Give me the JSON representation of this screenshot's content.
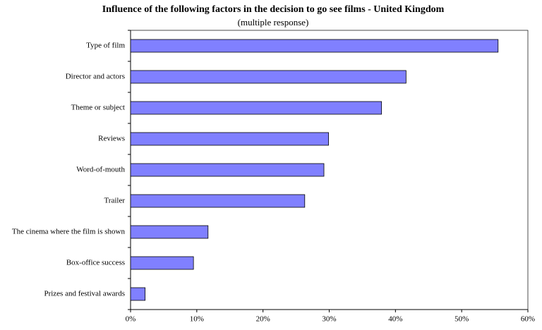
{
  "chart_data": {
    "type": "bar",
    "orientation": "horizontal",
    "title": "Influence of the following factors in the decision to go see films - United Kingdom",
    "subtitle": "(multiple response)",
    "categories": [
      "Type of film",
      "Director and actors",
      "Theme or subject",
      "Reviews",
      "Word-of-mouth",
      "Trailer",
      "The cinema where the film is shown",
      "Box-office success",
      "Prizes and festival awards"
    ],
    "values": [
      55.5,
      41.6,
      37.9,
      29.9,
      29.2,
      26.3,
      11.7,
      9.5,
      2.2
    ],
    "color": "#8080ff",
    "xlim": [
      0,
      60
    ],
    "xticks": [
      {
        "value": 0,
        "label": "0%"
      },
      {
        "value": 10,
        "label": "10%"
      },
      {
        "value": 20,
        "label": "20%"
      },
      {
        "value": 30,
        "label": "30%"
      },
      {
        "value": 40,
        "label": "40%"
      },
      {
        "value": 50,
        "label": "50%"
      },
      {
        "value": 60,
        "label": "60%"
      }
    ],
    "grid": false
  }
}
